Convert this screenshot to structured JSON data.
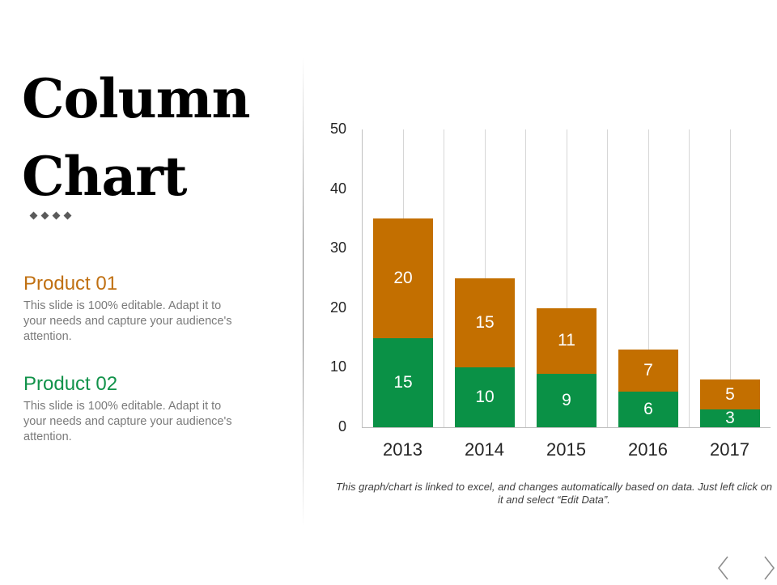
{
  "slide": {
    "title_line1": "Column",
    "title_line2": "Chart",
    "diamond_count": 4
  },
  "products": [
    {
      "title": "Product 01",
      "color": "#c07012",
      "description": "This slide is 100% editable. Adapt it to your needs and capture your audience's attention."
    },
    {
      "title": "Product 02",
      "color": "#11924a",
      "description": "This slide is 100% editable. Adapt it to your needs and capture your audience's attention."
    }
  ],
  "note": "This graph/chart is linked to excel, and changes automatically based on data. Just left click on it and select “Edit Data”.",
  "navigation": {
    "prev_icon": "chevron-left-icon",
    "next_icon": "chevron-right-icon"
  },
  "chart_data": {
    "type": "bar",
    "stacked": true,
    "title": "",
    "xlabel": "",
    "ylabel": "",
    "categories": [
      "2013",
      "2014",
      "2015",
      "2016",
      "2017"
    ],
    "series": [
      {
        "name": "Product 02",
        "color": "#0a9146",
        "values": [
          15,
          10,
          9,
          6,
          3
        ]
      },
      {
        "name": "Product 01",
        "color": "#c36f00",
        "values": [
          20,
          15,
          11,
          7,
          5
        ]
      }
    ],
    "ylim": [
      0,
      50
    ],
    "yticks": [
      0,
      10,
      20,
      30,
      40,
      50
    ],
    "grid": "vertical",
    "data_labels": true,
    "legend": "none"
  }
}
